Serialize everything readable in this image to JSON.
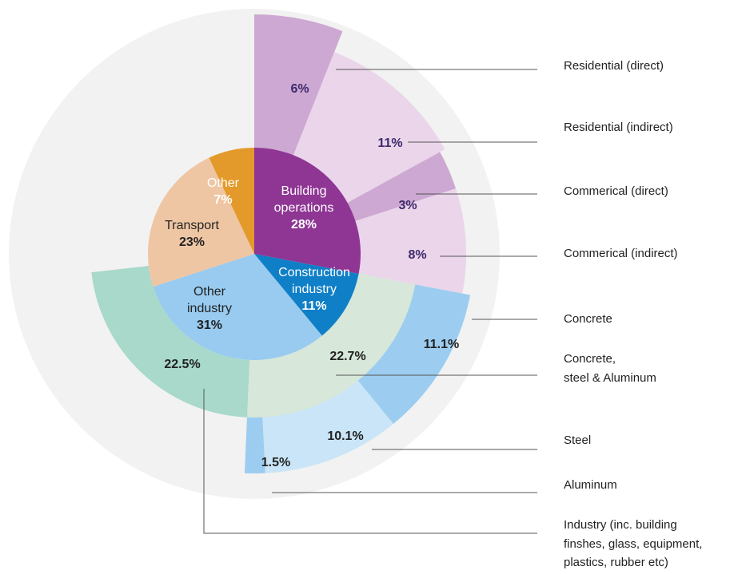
{
  "chart_data": {
    "type": "sunburst",
    "inner": {
      "labels": [
        [
          "Building",
          "operations"
        ],
        [
          "Construction",
          "industry"
        ],
        [
          "Other",
          "industry"
        ],
        [
          "Transport"
        ],
        [
          "Other"
        ]
      ],
      "values": [
        28,
        11,
        31,
        23,
        7
      ],
      "value_labels": [
        "28%",
        "11%",
        "31%",
        "23%",
        "7%"
      ],
      "colors": [
        "#8f3695",
        "#0f7fc7",
        "#98cbef",
        "#efc6a4",
        "#e39a2a"
      ]
    },
    "outer": {
      "labels": [
        [
          "Residential (direct)"
        ],
        [
          "Residential (indirect)"
        ],
        [
          "Commerical (direct)"
        ],
        [
          "Commerical (indirect)"
        ],
        [
          "Concrete"
        ],
        [
          "Concrete,",
          "steel & Aluminum"
        ],
        [
          "Steel"
        ],
        [
          "Aluminum"
        ],
        [
          "Industry (inc. building",
          "finshes, glass, equipment,",
          "plastics, rubber etc)"
        ]
      ],
      "values": [
        6,
        11,
        3,
        8,
        11.1,
        22.7,
        10.1,
        1.5,
        22.5
      ],
      "value_labels": [
        "6%",
        "11%",
        "3%",
        "8%",
        "11.1%",
        "22.7%",
        "10.1%",
        "1.5%",
        "22.5%"
      ],
      "colors": [
        "#cda8d2",
        "#ead5ea",
        "#cda8d2",
        "#ead5ea",
        "#9ccdf0",
        "#d7e7da",
        "#c9e5f7",
        "#9ccdf0",
        "#a8d9cb"
      ]
    }
  }
}
